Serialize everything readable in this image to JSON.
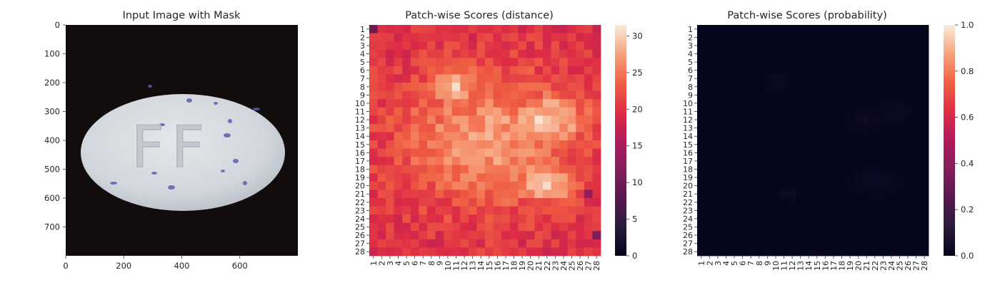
{
  "panels": [
    {
      "title": "Input Image with Mask",
      "x_ticks": [
        "0",
        "200",
        "400",
        "600"
      ],
      "y_ticks": [
        "0",
        "100",
        "200",
        "300",
        "400",
        "500",
        "600",
        "700"
      ],
      "image_text": "FF"
    },
    {
      "title": "Patch-wise Scores (distance)",
      "colorbar_ticks": [
        "0",
        "5",
        "10",
        "15",
        "20",
        "25",
        "30"
      ]
    },
    {
      "title": "Patch-wise Scores (probability)",
      "colorbar_ticks": [
        "0.0",
        "0.2",
        "0.4",
        "0.6",
        "0.8",
        "1.0"
      ]
    }
  ],
  "chart_data": [
    {
      "type": "heatmap",
      "title": "Input Image with Mask",
      "xlim": [
        0,
        800
      ],
      "ylim": [
        800,
        0
      ],
      "x_ticks": [
        0,
        200,
        400,
        600
      ],
      "y_ticks": [
        0,
        100,
        200,
        300,
        400,
        500,
        600,
        700
      ],
      "grid": false
    },
    {
      "type": "heatmap",
      "title": "Patch-wise Scores (distance)",
      "rows": 28,
      "cols": 28,
      "row_labels": [
        "1",
        "2",
        "3",
        "4",
        "5",
        "6",
        "7",
        "8",
        "9",
        "10",
        "11",
        "12",
        "13",
        "14",
        "15",
        "16",
        "17",
        "18",
        "19",
        "20",
        "21",
        "22",
        "23",
        "24",
        "25",
        "26",
        "27",
        "28"
      ],
      "col_labels": [
        "1",
        "2",
        "3",
        "4",
        "5",
        "6",
        "7",
        "8",
        "9",
        "10",
        "11",
        "12",
        "13",
        "14",
        "15",
        "16",
        "17",
        "18",
        "19",
        "20",
        "21",
        "22",
        "23",
        "24",
        "25",
        "26",
        "27",
        "28"
      ],
      "colorbar_range": [
        0,
        31.5
      ],
      "colorbar_ticks": [
        0,
        5,
        10,
        15,
        20,
        25,
        30
      ],
      "colormap": "rocket",
      "value_summary": "Values mostly 18-22 along the edges (cell 1,1 about 10; cell 26,28 about 11), rising to 26-31 in the central region with peaks near rows 7-9 / cols 10-11, rows 10-13 / cols 19-26 and rows 18-21 / cols 19-24."
    },
    {
      "type": "heatmap",
      "title": "Patch-wise Scores (probability)",
      "rows": 28,
      "cols": 28,
      "row_labels": [
        "1",
        "2",
        "3",
        "4",
        "5",
        "6",
        "7",
        "8",
        "9",
        "10",
        "11",
        "12",
        "13",
        "14",
        "15",
        "16",
        "17",
        "18",
        "19",
        "20",
        "21",
        "22",
        "23",
        "24",
        "25",
        "26",
        "27",
        "28"
      ],
      "col_labels": [
        "1",
        "2",
        "3",
        "4",
        "5",
        "6",
        "7",
        "8",
        "9",
        "10",
        "11",
        "12",
        "13",
        "14",
        "15",
        "16",
        "17",
        "18",
        "19",
        "20",
        "21",
        "22",
        "23",
        "24",
        "25",
        "26",
        "27",
        "28"
      ],
      "colorbar_range": [
        0,
        1.0
      ],
      "colorbar_ticks": [
        0.0,
        0.2,
        0.4,
        0.6,
        0.8,
        1.0
      ],
      "colormap": "rocket",
      "value_summary": "Nearly all cells about 0.0; faint values of about 0.01-0.03 around rows 7-8 / col 10, rows 10-13 / cols 19-26 and rows 18-21 / cols 11-24."
    }
  ]
}
